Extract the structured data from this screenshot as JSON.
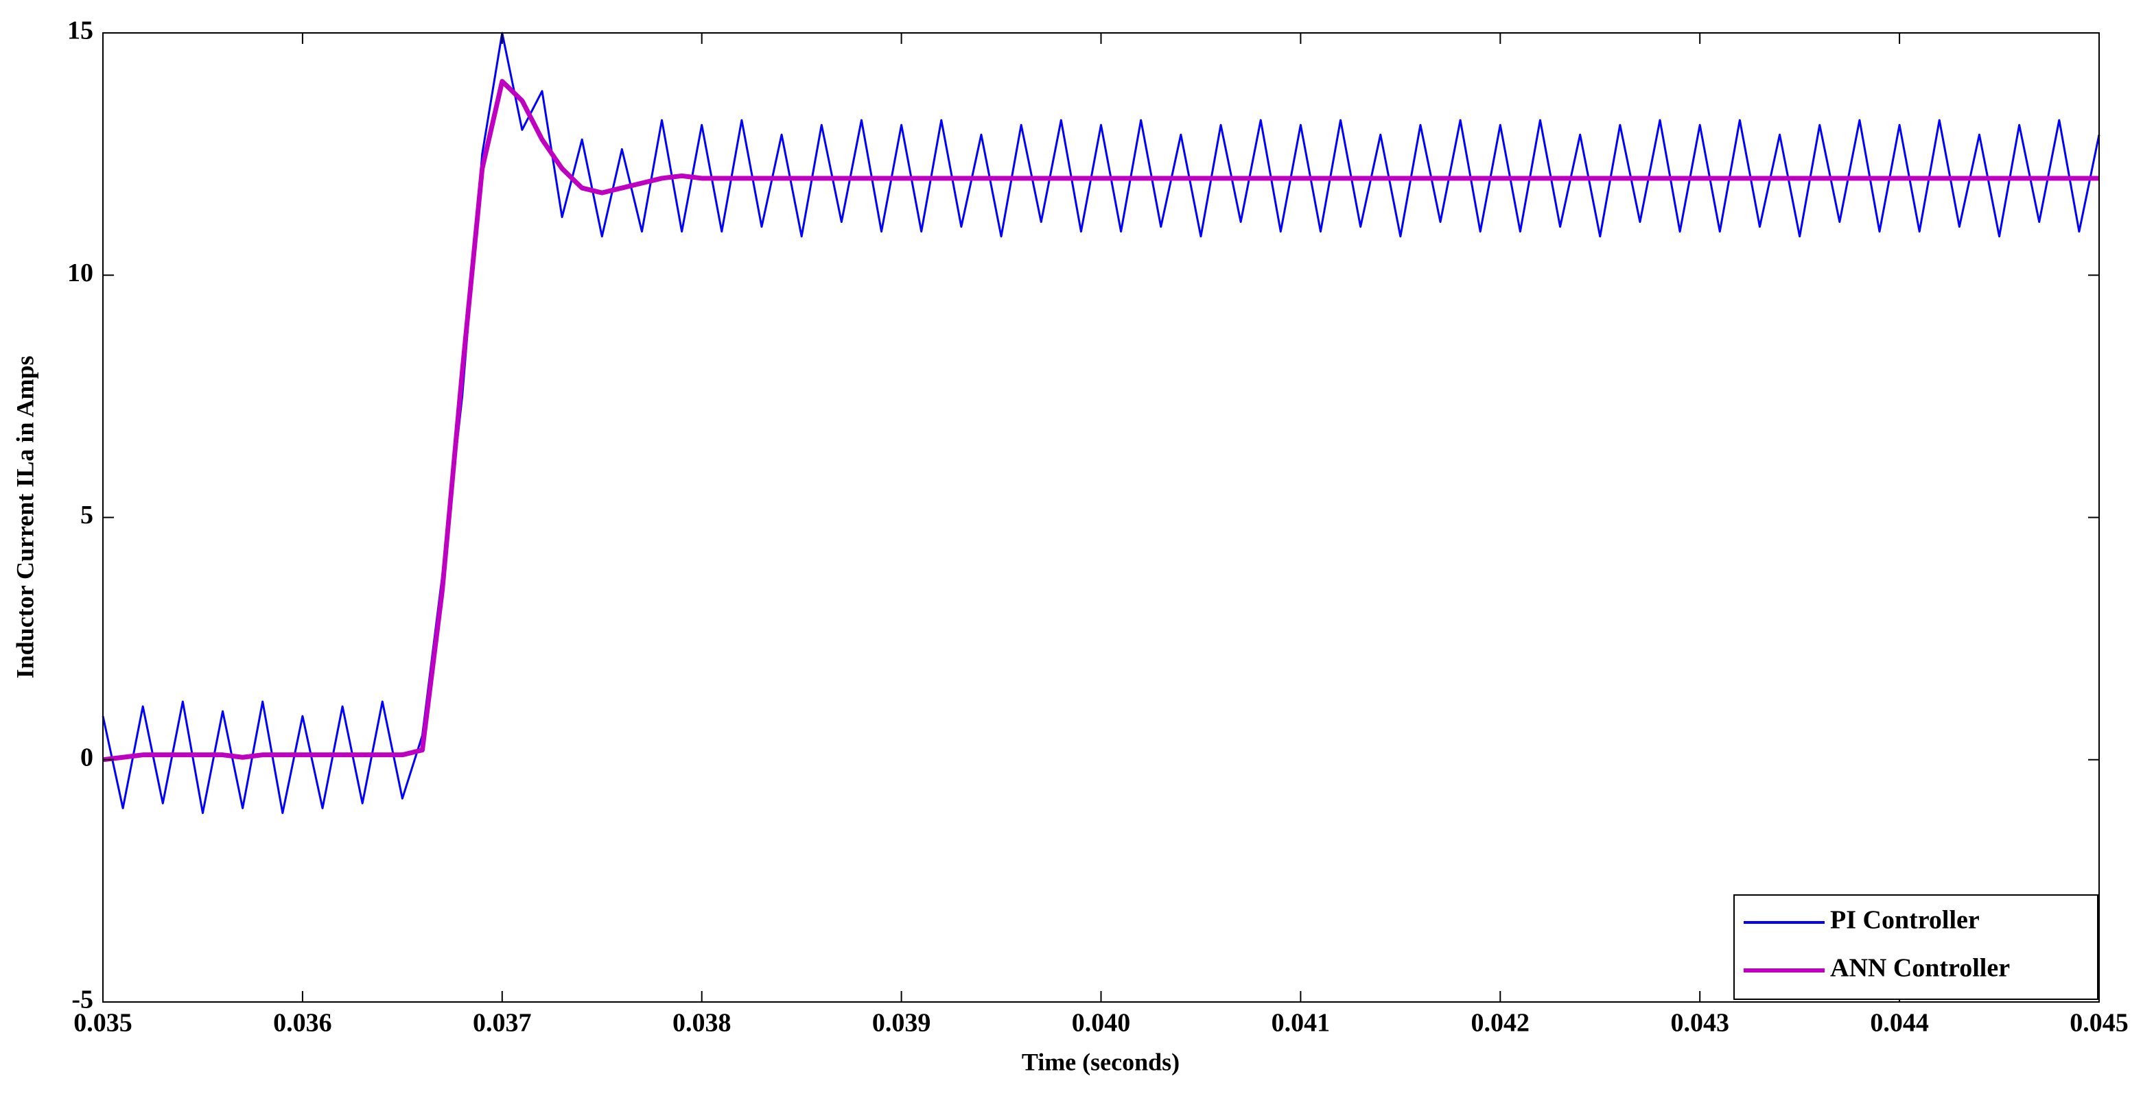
{
  "chart_data": {
    "type": "line",
    "xlabel": "Time (seconds)",
    "ylabel": "Inductor Current ILa in Amps",
    "x": [
      0.035,
      0.0351,
      0.0352,
      0.0353,
      0.0354,
      0.0355,
      0.0356,
      0.0357,
      0.0358,
      0.0359,
      0.036,
      0.0361,
      0.0362,
      0.0363,
      0.0364,
      0.0365,
      0.0366,
      0.0367,
      0.0368,
      0.0369,
      0.037,
      0.0371,
      0.0372,
      0.0373,
      0.0374,
      0.0375,
      0.0376,
      0.0377,
      0.0378,
      0.0379,
      0.038,
      0.0381,
      0.0382,
      0.0383,
      0.0384,
      0.0385,
      0.0386,
      0.0387,
      0.0388,
      0.0389,
      0.039,
      0.0391,
      0.0392,
      0.0393,
      0.0394,
      0.0395,
      0.0396,
      0.0397,
      0.0398,
      0.0399,
      0.04,
      0.0401,
      0.0402,
      0.0403,
      0.0404,
      0.0405,
      0.0406,
      0.0407,
      0.0408,
      0.0409,
      0.041,
      0.0411,
      0.0412,
      0.0413,
      0.0414,
      0.0415,
      0.0416,
      0.0417,
      0.0418,
      0.0419,
      0.042,
      0.0421,
      0.0422,
      0.0423,
      0.0424,
      0.0425,
      0.0426,
      0.0427,
      0.0428,
      0.0429,
      0.043,
      0.0431,
      0.0432,
      0.0433,
      0.0434,
      0.0435,
      0.0436,
      0.0437,
      0.0438,
      0.0439,
      0.044,
      0.0441,
      0.0442,
      0.0443,
      0.0444,
      0.0445,
      0.0446,
      0.0447,
      0.0448,
      0.0449,
      0.045
    ],
    "series": [
      {
        "name": "PI Controller",
        "color": "#0000ff",
        "values": [
          0.9,
          -1,
          1.1,
          -0.9,
          1.2,
          -1.1,
          1,
          -1,
          1.2,
          -1.1,
          0.9,
          -1,
          1.1,
          -0.9,
          1.2,
          -0.8,
          0.5,
          3.8,
          7.5,
          12.5,
          15,
          13,
          13.8,
          11.2,
          12.8,
          10.8,
          12.6,
          10.9,
          13.2,
          10.9,
          13.1,
          10.9,
          13.2,
          11,
          12.9,
          10.8,
          13.1,
          11.1,
          13.2,
          10.9,
          13.1,
          10.9,
          13.2,
          11,
          12.9,
          10.8,
          13.1,
          11.1,
          13.2,
          10.9,
          13.1,
          10.9,
          13.2,
          11,
          12.9,
          10.8,
          13.1,
          11.1,
          13.2,
          10.9,
          13.1,
          10.9,
          13.2,
          11,
          12.9,
          10.8,
          13.1,
          11.1,
          13.2,
          10.9,
          13.1,
          10.9,
          13.2,
          11,
          12.9,
          10.8,
          13.1,
          11.1,
          13.2,
          10.9,
          13.1,
          10.9,
          13.2,
          11,
          12.9,
          10.8,
          13.1,
          11.1,
          13.2,
          10.9,
          13.1,
          10.9,
          13.2,
          11,
          12.9,
          10.8,
          13.1,
          11.1,
          13.2,
          10.9,
          12.9
        ]
      },
      {
        "name": "ANN Controller",
        "color": "#c000c0",
        "values": [
          0,
          0.05,
          0.1,
          0.1,
          0.1,
          0.1,
          0.1,
          0.05,
          0.1,
          0.1,
          0.1,
          0.1,
          0.1,
          0.1,
          0.1,
          0.1,
          0.2,
          3.5,
          8,
          12.2,
          14,
          13.6,
          12.8,
          12.2,
          11.8,
          11.7,
          11.8,
          11.9,
          12,
          12.05,
          12,
          12,
          12,
          12,
          12,
          12,
          12,
          12,
          12,
          12,
          12,
          12,
          12,
          12,
          12,
          12,
          12,
          12,
          12,
          12,
          12,
          12,
          12,
          12,
          12,
          12,
          12,
          12,
          12,
          12,
          12,
          12,
          12,
          12,
          12,
          12,
          12,
          12,
          12,
          12,
          12,
          12,
          12,
          12,
          12,
          12,
          12,
          12,
          12,
          12,
          12,
          12,
          12,
          12,
          12,
          12,
          12,
          12,
          12,
          12,
          12,
          12,
          12,
          12,
          12,
          12,
          12,
          12,
          12,
          12,
          12
        ]
      }
    ],
    "xlim": [
      0.035,
      0.045
    ],
    "xticks": [
      0.035,
      0.036,
      0.037,
      0.038,
      0.039,
      {
        "value": 0.04,
        "label": "0.040"
      },
      0.041,
      0.042,
      0.043,
      0.044,
      0.045
    ],
    "ylim": [
      -5,
      15
    ],
    "yticks": [
      -5,
      0,
      5,
      10,
      15
    ],
    "legend": "lower right"
  }
}
